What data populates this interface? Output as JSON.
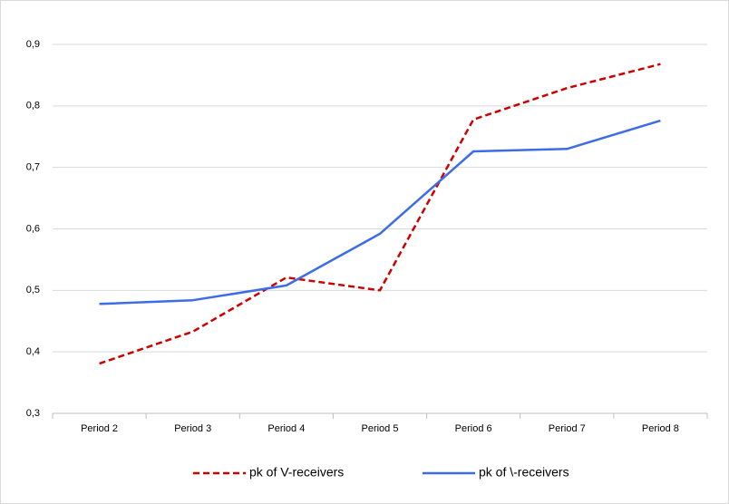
{
  "chart_data": {
    "type": "line",
    "categories": [
      "Period 2",
      "Period 3",
      "Period 4",
      "Period 5",
      "Period 6",
      "Period 7",
      "Period 8"
    ],
    "series": [
      {
        "name": "pk of V-receivers",
        "color": "#cc0000",
        "line_style": "dashed",
        "values": [
          0.381,
          0.433,
          0.521,
          0.5,
          0.778,
          0.829,
          0.868
        ]
      },
      {
        "name": "pk of \\-receivers",
        "color": "#3d6de6",
        "line_style": "solid",
        "values": [
          0.478,
          0.484,
          0.508,
          0.592,
          0.726,
          0.73,
          0.776
        ]
      }
    ],
    "ylim": [
      0.3,
      0.9
    ],
    "yticks": [
      {
        "value": 0.3,
        "label": "0,3"
      },
      {
        "value": 0.4,
        "label": "0,4"
      },
      {
        "value": 0.5,
        "label": "0,5"
      },
      {
        "value": 0.6,
        "label": "0,6"
      },
      {
        "value": 0.7,
        "label": "0,7"
      },
      {
        "value": 0.8,
        "label": "0,8"
      },
      {
        "value": 0.9,
        "label": "0,9"
      }
    ],
    "grid": true,
    "legend": "bottom"
  }
}
